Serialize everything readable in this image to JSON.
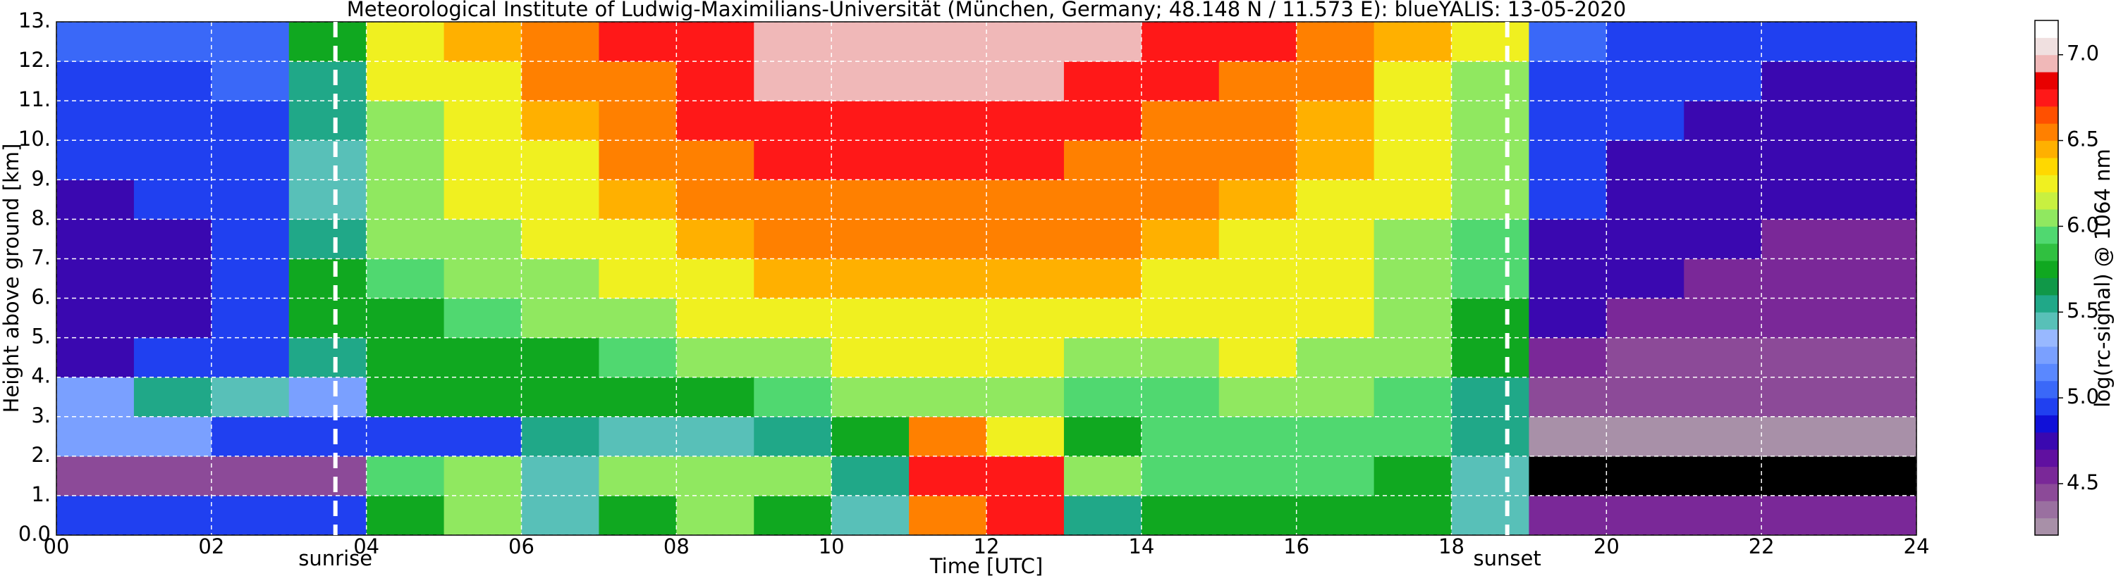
{
  "chart_data": {
    "type": "heatmap",
    "title": "Meteorological Institute of Ludwig-Maximilians-Universität (München, Germany; 48.148 N / 11.573 E):    blueYALIS: 13-05-2020",
    "x_label": "Time [UTC]",
    "y_label": "Height above ground [km]",
    "colorbar_label": "log(rc-signal) @ 1064 nm",
    "x_edges": [
      0,
      1,
      2,
      3,
      4,
      5,
      6,
      7,
      8,
      9,
      10,
      11,
      12,
      13,
      14,
      15,
      16,
      17,
      18,
      19,
      20,
      21,
      22,
      23,
      24
    ],
    "y_edges": [
      0,
      1,
      2,
      3,
      4,
      5,
      6,
      7,
      8,
      9,
      10,
      11,
      12,
      13
    ],
    "z": [
      [
        5.0,
        5.0,
        5.0,
        5.0,
        5.8,
        6.0,
        5.5,
        5.8,
        6.0,
        5.8,
        5.5,
        6.6,
        6.7,
        5.6,
        5.8,
        5.8,
        5.8,
        5.8,
        5.4,
        4.6,
        4.6,
        4.6,
        4.6,
        4.6
      ],
      [
        4.5,
        4.5,
        4.5,
        4.5,
        5.9,
        6.1,
        5.4,
        6.0,
        6.1,
        6.0,
        5.6,
        6.7,
        6.8,
        6.0,
        5.9,
        5.9,
        5.9,
        5.8,
        5.5,
        4.1,
        4.1,
        4.1,
        4.1,
        4.1
      ],
      [
        5.2,
        5.3,
        5.0,
        4.9,
        5.0,
        5.0,
        5.6,
        5.4,
        5.5,
        5.6,
        5.8,
        6.6,
        6.2,
        5.8,
        5.9,
        5.9,
        5.9,
        5.9,
        5.6,
        4.3,
        4.3,
        4.3,
        4.3,
        4.3
      ],
      [
        5.2,
        5.6,
        5.5,
        5.3,
        5.7,
        5.7,
        5.7,
        5.8,
        5.8,
        5.9,
        6.0,
        6.1,
        6.0,
        5.9,
        5.9,
        6.0,
        6.0,
        5.9,
        5.6,
        4.4,
        4.4,
        4.4,
        4.4,
        4.4
      ],
      [
        4.8,
        5.0,
        4.9,
        5.6,
        5.7,
        5.8,
        5.8,
        5.9,
        6.0,
        6.1,
        6.2,
        6.2,
        6.2,
        6.1,
        6.1,
        6.2,
        6.1,
        6.0,
        5.8,
        4.6,
        4.5,
        4.5,
        4.5,
        4.5
      ],
      [
        4.7,
        4.8,
        4.9,
        5.8,
        5.8,
        5.9,
        6.0,
        6.1,
        6.2,
        6.3,
        6.3,
        6.3,
        6.3,
        6.3,
        6.2,
        6.2,
        6.2,
        6.0,
        5.8,
        4.7,
        4.6,
        4.6,
        4.6,
        4.6
      ],
      [
        4.7,
        4.8,
        4.9,
        5.8,
        5.9,
        6.0,
        6.1,
        6.2,
        6.3,
        6.4,
        6.4,
        6.4,
        6.4,
        6.4,
        6.3,
        6.3,
        6.2,
        6.1,
        5.9,
        4.8,
        4.7,
        4.6,
        4.6,
        4.6
      ],
      [
        4.8,
        4.8,
        4.9,
        5.6,
        6.0,
        6.1,
        6.2,
        6.3,
        6.4,
        6.5,
        6.5,
        6.5,
        6.5,
        6.5,
        6.4,
        6.3,
        6.2,
        6.1,
        5.9,
        4.8,
        4.7,
        4.7,
        4.6,
        4.6
      ],
      [
        4.8,
        4.9,
        4.9,
        5.5,
        6.0,
        6.2,
        6.3,
        6.4,
        6.5,
        6.6,
        6.6,
        6.6,
        6.6,
        6.5,
        6.5,
        6.4,
        6.3,
        6.2,
        6.0,
        4.9,
        4.8,
        4.7,
        4.7,
        4.7
      ],
      [
        4.9,
        4.9,
        5.0,
        5.5,
        6.1,
        6.2,
        6.3,
        6.5,
        6.6,
        6.7,
        6.7,
        6.7,
        6.7,
        6.6,
        6.5,
        6.5,
        6.4,
        6.2,
        6.0,
        4.9,
        4.8,
        4.8,
        4.7,
        4.7
      ],
      [
        5.0,
        5.0,
        5.0,
        5.6,
        6.1,
        6.3,
        6.4,
        6.5,
        6.7,
        6.8,
        6.8,
        6.8,
        6.8,
        6.7,
        6.6,
        6.5,
        6.4,
        6.3,
        6.1,
        5.0,
        4.9,
        4.8,
        4.8,
        4.8
      ],
      [
        5.0,
        5.0,
        5.1,
        5.6,
        6.2,
        6.3,
        6.5,
        6.6,
        6.8,
        6.9,
        6.9,
        6.9,
        6.9,
        6.8,
        6.7,
        6.6,
        6.5,
        6.3,
        6.1,
        5.0,
        4.9,
        4.9,
        4.8,
        4.8
      ],
      [
        5.1,
        5.1,
        5.1,
        5.7,
        6.2,
        6.4,
        6.5,
        6.7,
        6.8,
        7.0,
        7.0,
        7.0,
        7.0,
        6.9,
        6.8,
        6.7,
        6.5,
        6.4,
        6.2,
        5.1,
        5.0,
        4.9,
        4.9,
        4.9
      ]
    ],
    "xlim": [
      0,
      24
    ],
    "ylim": [
      0,
      13
    ],
    "xticks": [
      {
        "value": 0,
        "label": "00"
      },
      {
        "value": 2,
        "label": "02"
      },
      {
        "value": 4,
        "label": "04"
      },
      {
        "value": 6,
        "label": "06"
      },
      {
        "value": 8,
        "label": "08"
      },
      10,
      12,
      14,
      16,
      18,
      20,
      22,
      24
    ],
    "yticks": [
      {
        "value": 0,
        "label": "0.0"
      },
      {
        "value": 1,
        "label": "1."
      },
      {
        "value": 2,
        "label": "2."
      },
      {
        "value": 3,
        "label": "3."
      },
      {
        "value": 4,
        "label": "4."
      },
      {
        "value": 5,
        "label": "5."
      },
      {
        "value": 6,
        "label": "6."
      },
      {
        "value": 7,
        "label": "7."
      },
      {
        "value": 8,
        "label": "8."
      },
      {
        "value": 9,
        "label": "9."
      },
      {
        "value": 10,
        "label": "10."
      },
      {
        "value": 11,
        "label": "11."
      },
      {
        "value": 12,
        "label": "12."
      },
      {
        "value": 13,
        "label": "13."
      }
    ],
    "vlim": [
      4.2,
      7.2
    ],
    "cticks": [
      4.5,
      {
        "value": 5,
        "label": "5.0"
      },
      5.5,
      {
        "value": 6,
        "label": "6.0"
      },
      6.5,
      {
        "value": 7,
        "label": "7.0"
      }
    ],
    "colors": [
      "#a890a8",
      "#9a70a0",
      "#8c4a98",
      "#7a2898",
      "#6010a0",
      "#3a08b0",
      "#1010d8",
      "#2040f0",
      "#3a68f8",
      "#5a88ff",
      "#7aa0ff",
      "#98b8ff",
      "#58c0b8",
      "#20a888",
      "#109848",
      "#10a820",
      "#30c040",
      "#50d870",
      "#90e860",
      "#c8f040",
      "#f0f020",
      "#ffd800",
      "#ffb000",
      "#ff8000",
      "#ff5000",
      "#ff1818",
      "#e80000",
      "#f0b8b8",
      "#f0e0e0",
      "#ffffff"
    ],
    "under_color": "#000000",
    "grid": true,
    "annotations": [
      {
        "text": "sunrise",
        "x": 3.6
      },
      {
        "text": "sunset",
        "x": 18.72
      }
    ]
  }
}
